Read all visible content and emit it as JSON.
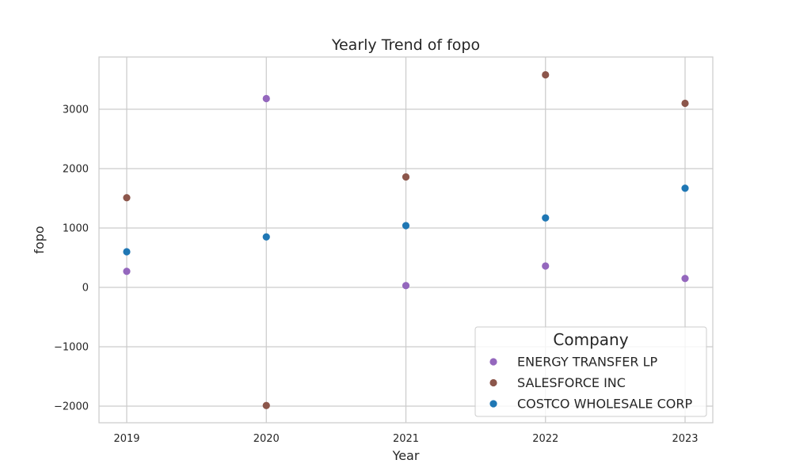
{
  "chart_data": {
    "type": "scatter",
    "title": "Yearly Trend of fopo",
    "xlabel": "Year",
    "ylabel": "fopo",
    "x": [
      "2019",
      "2020",
      "2021",
      "2022",
      "2023"
    ],
    "ylim": [
      -2280,
      3880
    ],
    "yticks": [
      -2000,
      -1000,
      0,
      1000,
      2000,
      3000
    ],
    "ytick_labels": [
      "−2000",
      "−1000",
      "0",
      "1000",
      "2000",
      "3000"
    ],
    "grid": true,
    "legend": {
      "title": "Company",
      "position": "lower-right"
    },
    "series": [
      {
        "name": "ENERGY TRANSFER LP",
        "color": "#9467bd",
        "values": [
          270,
          3180,
          30,
          360,
          150
        ]
      },
      {
        "name": "SALESFORCE INC",
        "color": "#8c564b",
        "values": [
          1510,
          -1990,
          1860,
          3580,
          3100
        ]
      },
      {
        "name": "COSTCO WHOLESALE CORP",
        "color": "#1f77b4",
        "values": [
          600,
          850,
          1040,
          1170,
          1670
        ]
      }
    ]
  }
}
